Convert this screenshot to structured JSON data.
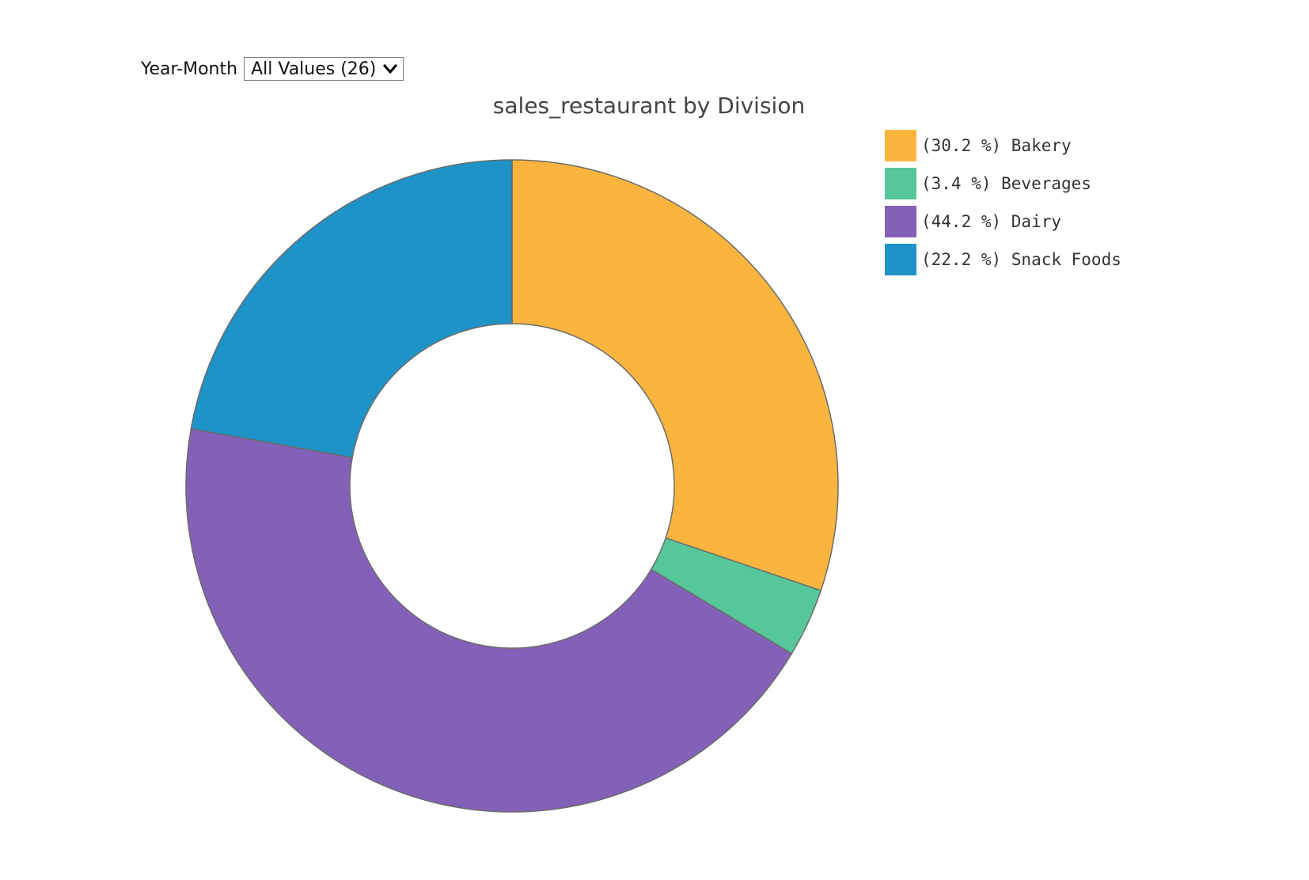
{
  "filter": {
    "label": "Year-Month",
    "selected_value": "All Values (26)"
  },
  "chart_data": {
    "type": "pie",
    "donut": true,
    "title": "sales_restaurant by Division",
    "legend_position": "right",
    "slices": [
      {
        "label": "Bakery",
        "percent": 30.2,
        "legend_text": "(30.2 %) Bakery",
        "color": "#FBB53F"
      },
      {
        "label": "Beverages",
        "percent": 3.4,
        "legend_text": "(3.4 %) Beverages",
        "color": "#56C79B"
      },
      {
        "label": "Dairy",
        "percent": 44.2,
        "legend_text": "(44.2 %) Dairy",
        "color": "#8461B8"
      },
      {
        "label": "Snack Foods",
        "percent": 22.2,
        "legend_text": "(22.2 %) Snack Foods",
        "color": "#1E93C8"
      }
    ]
  },
  "icons": {
    "select_arrow": "chevron-down-icon"
  }
}
